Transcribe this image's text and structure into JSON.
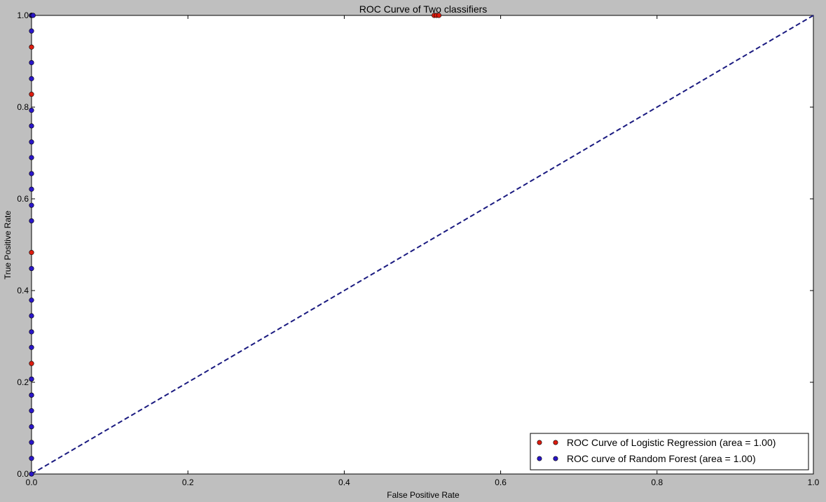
{
  "chart_data": {
    "type": "scatter",
    "title": "ROC Curve of Two classifiers",
    "xlabel": "False Positive Rate",
    "ylabel": "True Positive Rate",
    "xlim": [
      0.0,
      1.0
    ],
    "ylim": [
      0.0,
      1.0
    ],
    "x_ticks": [
      "0.0",
      "0.2",
      "0.4",
      "0.6",
      "0.8",
      "1.0"
    ],
    "y_ticks": [
      "0.0",
      "0.2",
      "0.4",
      "0.6",
      "0.8",
      "1.0"
    ],
    "grid": false,
    "legend_position": "bottom-right",
    "series": [
      {
        "name": "ROC Curve of Logistic Regression (area = 1.00)",
        "color": "#dd1c0f",
        "marker": "circle",
        "x": [
          0.0,
          0.0,
          0.0,
          0.0,
          0.0,
          0.0,
          0.0,
          0.0,
          0.0,
          0.0,
          0.515,
          0.518,
          0.521
        ],
        "y": [
          0.0,
          0.172,
          0.207,
          0.241,
          0.483,
          0.828,
          0.931,
          1.0,
          1.0,
          1.0,
          1.0,
          1.0,
          1.0
        ]
      },
      {
        "name": "ROC curve of Random Forest (area = 1.00)",
        "color": "#2a16c8",
        "marker": "circle",
        "x": [
          0.0,
          0.0,
          0.0,
          0.0,
          0.0,
          0.0,
          0.0,
          0.0,
          0.0,
          0.0,
          0.0,
          0.0,
          0.0,
          0.0,
          0.0,
          0.0,
          0.0,
          0.0,
          0.0,
          0.0,
          0.0,
          0.0,
          0.0,
          0.0,
          0.0,
          0.0,
          0.0,
          0.0,
          0.0,
          0.0,
          0.0,
          0.001,
          0.002
        ],
        "y": [
          0.0,
          0.034,
          0.069,
          0.103,
          0.138,
          0.172,
          0.207,
          0.276,
          0.31,
          0.345,
          0.379,
          0.448,
          0.552,
          0.586,
          0.621,
          0.655,
          0.69,
          0.724,
          0.759,
          0.793,
          0.862,
          0.897,
          0.966,
          1.0,
          1.0,
          1.0,
          1.0,
          1.0,
          1.0,
          1.0,
          1.0,
          1.0,
          1.0
        ]
      }
    ],
    "reference_line": {
      "color": "#1a1a80",
      "style": "dashed",
      "x": [
        0.0,
        1.0
      ],
      "y": [
        0.0,
        1.0
      ]
    }
  }
}
